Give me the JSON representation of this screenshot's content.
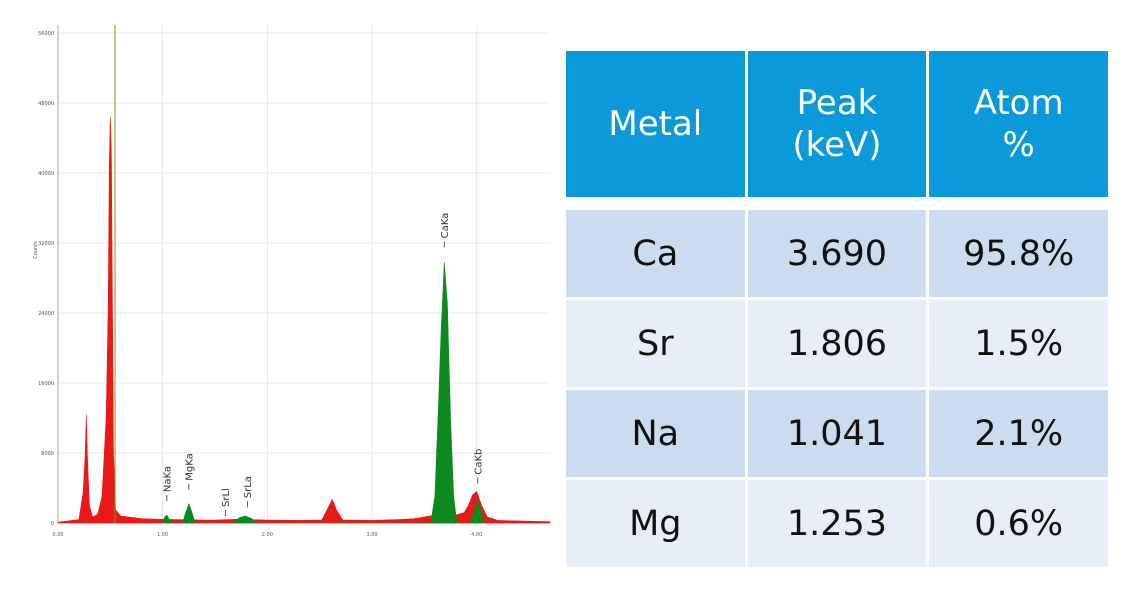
{
  "chart_data": {
    "type": "area",
    "ylabel": "Counts",
    "xlim": [
      0,
      4.7
    ],
    "ylim": [
      0,
      56000
    ],
    "x_ticks": [
      "0.00",
      "1.00",
      "2.00",
      "3.00",
      "4.00"
    ],
    "y_ticks": [
      "0",
      "8000",
      "16000",
      "24000",
      "32000",
      "40000",
      "48000",
      "56000"
    ],
    "grid": true,
    "series": [
      {
        "color": "#e81919",
        "points": [
          [
            0.0,
            80
          ],
          [
            0.2,
            400
          ],
          [
            0.24,
            3500
          ],
          [
            0.26,
            8000
          ],
          [
            0.27,
            12400
          ],
          [
            0.28,
            8000
          ],
          [
            0.3,
            2000
          ],
          [
            0.33,
            700
          ],
          [
            0.38,
            1000
          ],
          [
            0.42,
            3000
          ],
          [
            0.46,
            12000
          ],
          [
            0.48,
            25000
          ],
          [
            0.49,
            41000
          ],
          [
            0.5,
            46400
          ],
          [
            0.51,
            42000
          ],
          [
            0.53,
            8000
          ],
          [
            0.55,
            1500
          ],
          [
            0.6,
            800
          ],
          [
            0.8,
            500
          ],
          [
            1.0,
            420
          ],
          [
            1.2,
            380
          ],
          [
            1.4,
            340
          ],
          [
            1.5,
            330
          ],
          [
            1.7,
            420
          ],
          [
            2.0,
            340
          ],
          [
            2.3,
            300
          ],
          [
            2.52,
            350
          ],
          [
            2.57,
            1500
          ],
          [
            2.62,
            2700
          ],
          [
            2.66,
            1500
          ],
          [
            2.72,
            350
          ],
          [
            3.0,
            300
          ],
          [
            3.25,
            400
          ],
          [
            3.4,
            500
          ],
          [
            3.55,
            800
          ],
          [
            3.6,
            900
          ],
          [
            3.8,
            900
          ],
          [
            3.88,
            1200
          ],
          [
            3.92,
            2000
          ],
          [
            3.96,
            3200
          ],
          [
            4.0,
            3600
          ],
          [
            4.04,
            2200
          ],
          [
            4.1,
            700
          ],
          [
            4.2,
            300
          ],
          [
            4.7,
            150
          ]
        ]
      },
      {
        "color": "#0d8a1f",
        "points": [
          [
            1.0,
            0
          ],
          [
            1.02,
            700
          ],
          [
            1.04,
            900
          ],
          [
            1.06,
            500
          ],
          [
            1.09,
            0
          ],
          [
            1.19,
            0
          ],
          [
            1.22,
            1200
          ],
          [
            1.25,
            2200
          ],
          [
            1.28,
            1200
          ],
          [
            1.31,
            0
          ],
          [
            1.68,
            0
          ],
          [
            1.73,
            600
          ],
          [
            1.79,
            800
          ],
          [
            1.85,
            500
          ],
          [
            1.9,
            0
          ],
          [
            3.56,
            0
          ],
          [
            3.6,
            3000
          ],
          [
            3.63,
            12000
          ],
          [
            3.66,
            22000
          ],
          [
            3.69,
            29800
          ],
          [
            3.72,
            25000
          ],
          [
            3.75,
            12000
          ],
          [
            3.78,
            3000
          ],
          [
            3.81,
            0
          ],
          [
            3.94,
            0
          ],
          [
            3.98,
            1500
          ],
          [
            4.01,
            2600
          ],
          [
            4.04,
            1500
          ],
          [
            4.07,
            0
          ]
        ]
      }
    ],
    "cursor_x": 0.545,
    "peak_labels": [
      {
        "label": "NaKa",
        "x": 1.04,
        "y": 2500
      },
      {
        "label": "MgKa",
        "x": 1.25,
        "y": 3800
      },
      {
        "label": "SrLl",
        "x": 1.6,
        "y": 800
      },
      {
        "label": "SrLa",
        "x": 1.81,
        "y": 1800
      },
      {
        "label": "CaKa",
        "x": 3.69,
        "y": 31500
      },
      {
        "label": "CaKb",
        "x": 4.01,
        "y": 4500
      }
    ]
  },
  "table": {
    "headers": [
      {
        "line1": "Metal",
        "line2": ""
      },
      {
        "line1": "Peak",
        "line2": "(keV)"
      },
      {
        "line1": "Atom",
        "line2": "%"
      }
    ],
    "rows": [
      {
        "metal": "Ca",
        "peak": "3.690",
        "atom": "95.8%"
      },
      {
        "metal": "Sr",
        "peak": "1.806",
        "atom": "1.5%"
      },
      {
        "metal": "Na",
        "peak": "1.041",
        "atom": "2.1%"
      },
      {
        "metal": "Mg",
        "peak": "1.253",
        "atom": "0.6%"
      }
    ],
    "header_color": "#0a9ad9",
    "row_colors": [
      "#cbdcf0",
      "#e7eef8"
    ]
  }
}
